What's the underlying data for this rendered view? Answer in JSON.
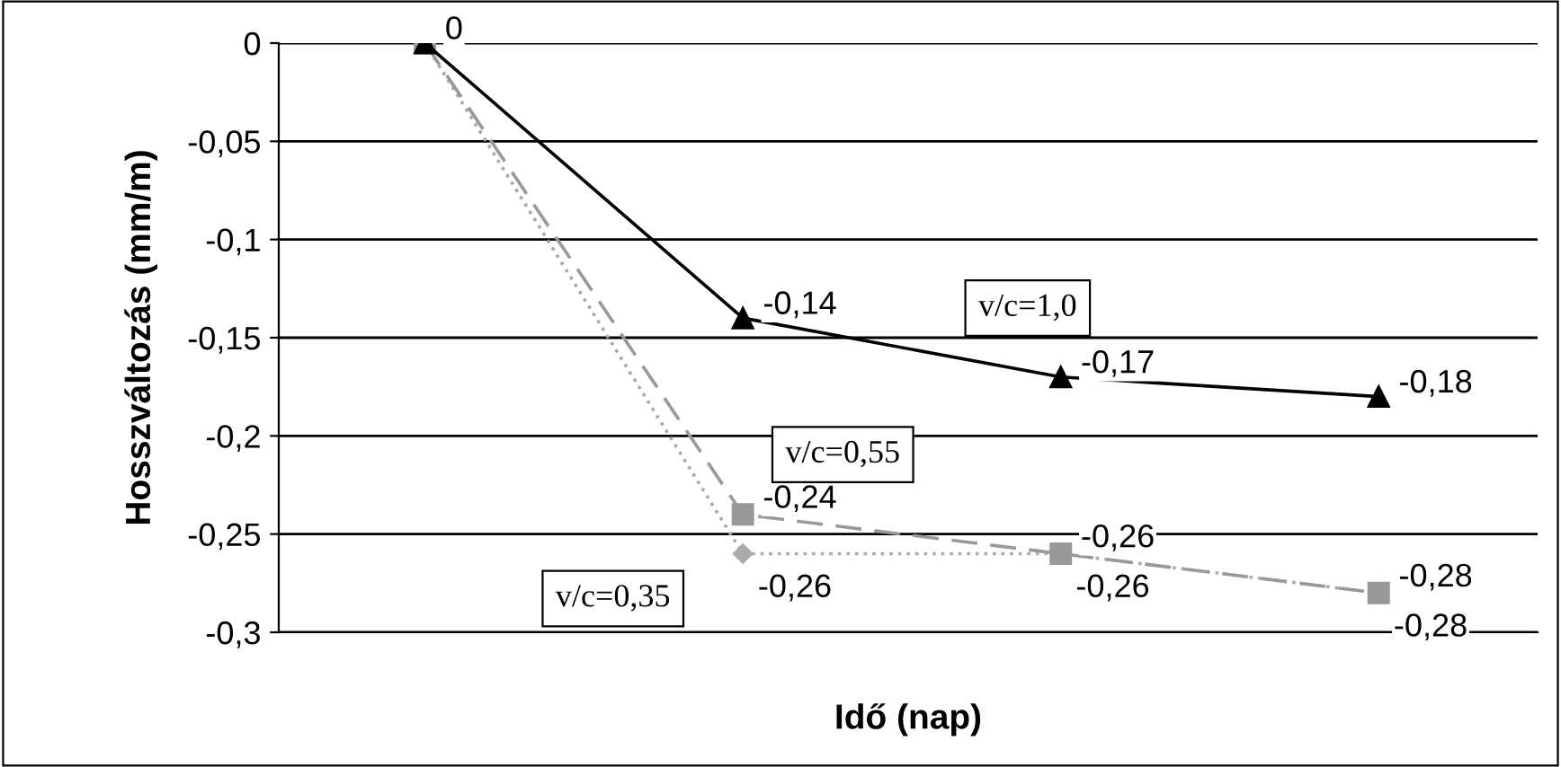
{
  "chart_data": {
    "type": "line",
    "xlabel": "Idő (nap)",
    "ylabel": "Hosszváltozás (mm/m)",
    "categories": [
      null,
      null,
      null,
      null
    ],
    "series": [
      {
        "name": "v/c=1,0",
        "color": "#000000",
        "marker": "triangle",
        "line_style": "solid",
        "values": [
          0,
          -0.14,
          -0.17,
          -0.18
        ],
        "value_labels": [
          "0",
          "-0,14",
          "-0,17",
          "-0,18"
        ]
      },
      {
        "name": "v/c=0,55",
        "color": "#999999",
        "marker": "square",
        "line_style": "dashed",
        "values": [
          0,
          -0.24,
          -0.26,
          -0.28
        ],
        "value_labels": [
          null,
          "-0,24",
          "-0,26",
          "-0,28"
        ]
      },
      {
        "name": "v/c=0,35",
        "color": "#aaaaaa",
        "marker": "diamond",
        "line_style": "dotted",
        "values": [
          0,
          -0.26,
          -0.26,
          -0.28
        ],
        "value_labels": [
          null,
          "-0,26",
          "-0,26",
          "-0,28"
        ]
      }
    ],
    "ylim": [
      -0.3,
      0
    ],
    "yticks": [
      {
        "value": 0,
        "label": "0"
      },
      {
        "value": -0.05,
        "label": "-0,05"
      },
      {
        "value": -0.1,
        "label": "-0,1"
      },
      {
        "value": -0.15,
        "label": "-0,15"
      },
      {
        "value": -0.2,
        "label": "-0,2"
      },
      {
        "value": -0.25,
        "label": "-0,25"
      },
      {
        "value": -0.3,
        "label": "-0,3"
      }
    ],
    "grid": "y",
    "legend": false
  }
}
